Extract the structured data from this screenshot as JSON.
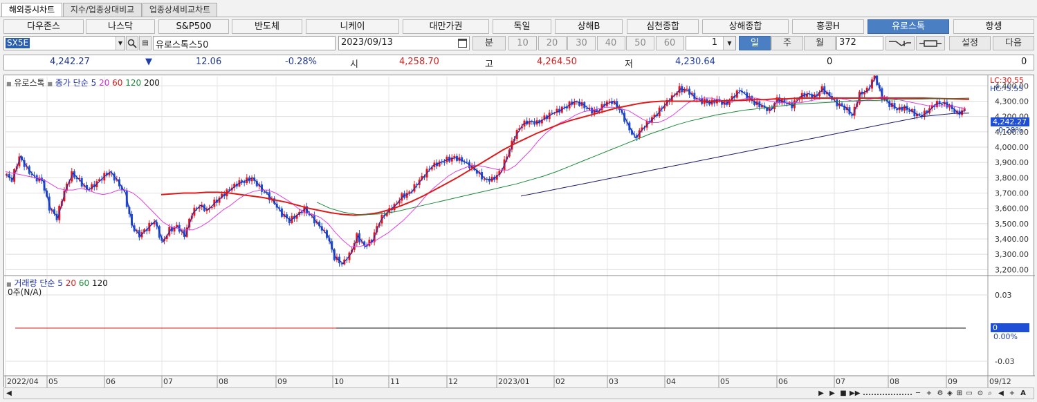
{
  "tabs": [
    "해외증시차트",
    "지수/업종상대비교",
    "업종상세비교차트"
  ],
  "markets": [
    "다우존스",
    "나스닥",
    "S&P500",
    "반도체",
    "니케이",
    "대만가권",
    "독일",
    "상해B",
    "심천종합",
    "상해종합",
    "홍콩H",
    "유로스톡",
    "항셍"
  ],
  "selected_market": "유로스톡",
  "controls": {
    "symbol": "SX5E",
    "name": "유로스톡스50",
    "date": "2023/09/13",
    "unit_label": "분",
    "minutes": [
      "10",
      "20",
      "30",
      "40",
      "50",
      "60"
    ],
    "interval": "1",
    "periods": [
      "일",
      "주",
      "월"
    ],
    "selected_period": "일",
    "count": "372",
    "settings_label": "설정",
    "next_label": "다음"
  },
  "quote": {
    "price": "4,242.27",
    "direction": "▼",
    "change": "12.06",
    "change_pct": "-0.28%",
    "open_label": "시",
    "open": "4,258.70",
    "high_label": "고",
    "high": "4,264.50",
    "low_label": "저",
    "low": "4,230.64",
    "volume": "0",
    "volume2": "0"
  },
  "price_legend": {
    "name": "유로스톡",
    "basis": "종가 단순",
    "ma": [
      "5",
      "20",
      "60",
      "120",
      "200"
    ]
  },
  "volume_legend": {
    "name": "거래량",
    "basis": "단순",
    "ma": [
      "5",
      "20",
      "60",
      "120"
    ],
    "value": "0주(N/A)"
  },
  "side_labels": {
    "lc": "LC:30.55",
    "hc": "HC:-5.55",
    "current": "4,242.27",
    "current_pct": "-0.28%",
    "vol_current": "0",
    "vol_pct": "0.00%"
  },
  "colors": {
    "up": "#e8141c",
    "down": "#1f4fd6",
    "ma5": "#1b2fb0",
    "ma20": "#e040e0",
    "ma60": "#e01818",
    "ma120": "#1a8a3a",
    "ma200": "#1a1a6a",
    "selected": "#4a7fc4"
  },
  "chart_data": {
    "type": "candlestick",
    "x_ticks": [
      "2022/04",
      "05",
      "06",
      "07",
      "08",
      "09",
      "10",
      "11",
      "12",
      "2023/01",
      "02",
      "03",
      "04",
      "05",
      "06",
      "07",
      "08",
      "09",
      "09/12"
    ],
    "y_ticks": [
      "4,400.00",
      "4,300.00",
      "4,200.00",
      "4,100.00",
      "4,000.00",
      "3,900.00",
      "3,800.00",
      "3,700.00",
      "3,600.00",
      "3,500.00",
      "3,400.00",
      "3,300.00",
      "3,200.00"
    ],
    "ylim": [
      3170,
      4460
    ],
    "close_path": [
      3820,
      3790,
      3940,
      3860,
      3800,
      3780,
      3600,
      3540,
      3720,
      3830,
      3780,
      3720,
      3750,
      3800,
      3840,
      3780,
      3700,
      3480,
      3420,
      3470,
      3520,
      3380,
      3460,
      3480,
      3420,
      3570,
      3620,
      3590,
      3640,
      3680,
      3720,
      3760,
      3780,
      3800,
      3740,
      3690,
      3630,
      3560,
      3520,
      3560,
      3600,
      3540,
      3480,
      3420,
      3280,
      3240,
      3300,
      3420,
      3350,
      3390,
      3520,
      3580,
      3620,
      3680,
      3700,
      3760,
      3820,
      3880,
      3900,
      3920,
      3930,
      3910,
      3880,
      3840,
      3790,
      3790,
      3830,
      3940,
      4070,
      4150,
      4170,
      4160,
      4190,
      4220,
      4240,
      4270,
      4300,
      4280,
      4240,
      4230,
      4280,
      4300,
      4250,
      4150,
      4060,
      4120,
      4170,
      4220,
      4280,
      4330,
      4380,
      4370,
      4320,
      4300,
      4290,
      4310,
      4280,
      4320,
      4370,
      4330,
      4290,
      4270,
      4240,
      4310,
      4290,
      4270,
      4330,
      4350,
      4330,
      4380,
      4330,
      4280,
      4260,
      4210,
      4350,
      4370,
      4460,
      4320,
      4280,
      4250,
      4260,
      4230,
      4200,
      4230,
      4280,
      4290,
      4270,
      4220,
      4242.27
    ],
    "ma20": [
      3840,
      3830,
      3820,
      3810,
      3800,
      3790,
      3760,
      3730,
      3720,
      3720,
      3730,
      3720,
      3700,
      3690,
      3700,
      3720,
      3720,
      3700,
      3660,
      3610,
      3560,
      3510,
      3480,
      3470,
      3460,
      3460,
      3480,
      3510,
      3550,
      3590,
      3620,
      3660,
      3690,
      3710,
      3720,
      3720,
      3700,
      3670,
      3640,
      3600,
      3570,
      3560,
      3540,
      3500,
      3440,
      3390,
      3350,
      3350,
      3360,
      3380,
      3410,
      3440,
      3480,
      3520,
      3570,
      3620,
      3680,
      3730,
      3770,
      3810,
      3840,
      3860,
      3880,
      3880,
      3870,
      3860,
      3850,
      3850,
      3880,
      3930,
      3980,
      4040,
      4090,
      4130,
      4160,
      4180,
      4210,
      4230,
      4240,
      4250,
      4260,
      4260,
      4250,
      4240,
      4210,
      4180,
      4160,
      4160,
      4180,
      4210,
      4250,
      4290,
      4310,
      4320,
      4320,
      4310,
      4300,
      4300,
      4310,
      4320,
      4320,
      4310,
      4300,
      4290,
      4290,
      4290,
      4290,
      4300,
      4310,
      4320,
      4320,
      4320,
      4310,
      4300,
      4300,
      4310,
      4320,
      4330,
      4320,
      4310,
      4300,
      4290,
      4280,
      4270,
      4270,
      4270,
      4270,
      4260,
      4250
    ],
    "ma60": {
      "start_index": 17,
      "values": [
        3690,
        3695,
        3700,
        3700,
        3705,
        3705,
        3700,
        3690,
        3680,
        3670,
        3655,
        3640,
        3620,
        3600,
        3585,
        3570,
        3560,
        3555,
        3560,
        3570,
        3590,
        3615,
        3645,
        3680,
        3720,
        3760,
        3800,
        3845,
        3890,
        3935,
        3980,
        4020,
        4055,
        4090,
        4120,
        4150,
        4175,
        4195,
        4215,
        4235,
        4255,
        4270,
        4285,
        4295,
        4300,
        4300,
        4300,
        4300,
        4300,
        4300,
        4305,
        4305,
        4310,
        4310,
        4315,
        4315,
        4320,
        4320,
        4320,
        4320,
        4320,
        4320,
        4320,
        4320,
        4320,
        4320,
        4320,
        4320,
        4318,
        4316,
        4314,
        4312
      ]
    },
    "ma120": {
      "start_index": 51,
      "values": [
        3640,
        3600,
        3575,
        3560,
        3560,
        3565,
        3580,
        3600,
        3620,
        3640,
        3660,
        3680,
        3700,
        3720,
        3740,
        3760,
        3785,
        3810,
        3840,
        3875,
        3910,
        3945,
        3980,
        4015,
        4050,
        4085,
        4115,
        4145,
        4170,
        4190,
        4210,
        4225,
        4240,
        4250,
        4260,
        4270,
        4280,
        4285,
        4290,
        4295,
        4300,
        4305,
        4305,
        4308,
        4310,
        4312,
        4315,
        4316,
        4318,
        4320
      ]
    },
    "ma200": {
      "start_index": 72,
      "values": [
        3680,
        3700,
        3720,
        3740,
        3760,
        3780,
        3800,
        3820,
        3840,
        3860,
        3880,
        3900,
        3920,
        3940,
        3960,
        3980,
        4000,
        4020,
        4040,
        4060,
        4080,
        4100,
        4120,
        4140,
        4160,
        4180,
        4200,
        4210,
        4220,
        4222
      ]
    },
    "volume": {
      "ylim": [
        -0.05,
        0.05
      ],
      "y_ticks": [
        "0.03",
        "0",
        "0.00%",
        "-0.03"
      ],
      "values_all_zero": true
    }
  }
}
